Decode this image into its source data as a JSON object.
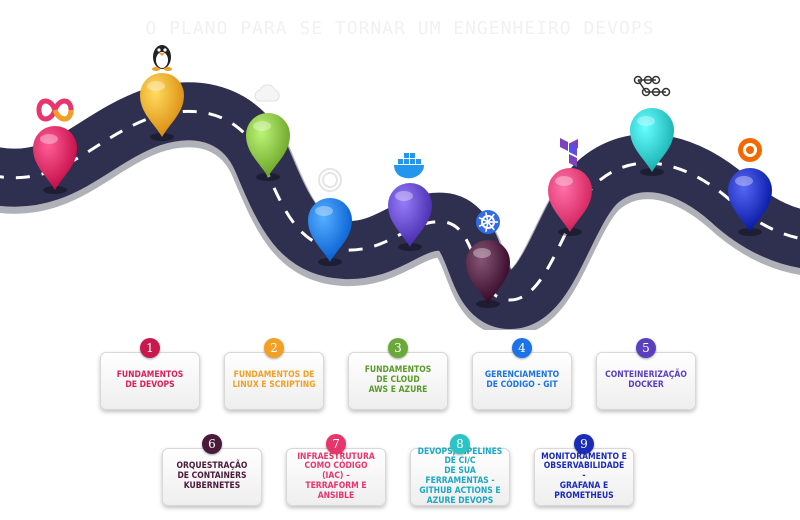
{
  "title": "O plano para se tornar um engenheiro DevOps",
  "colors": {
    "road": "#2f2f4f",
    "road_marking": "#ffffff",
    "background": "#ffffff"
  },
  "milestones": [
    {
      "icon": "infinity-icon",
      "color": "#d8205a"
    },
    {
      "icon": "linux-tux-icon",
      "color": "#f2a024"
    },
    {
      "icon": "cloud-icon",
      "color": "#7fb83a"
    },
    {
      "icon": "github-octocat-icon",
      "color": "#1a73e8"
    },
    {
      "icon": "docker-whale-icon",
      "color": "#5a3fbf"
    },
    {
      "icon": "kubernetes-helm-icon",
      "color": "#4a1a3a"
    },
    {
      "icon": "terraform-icon",
      "color": "#e8356e"
    },
    {
      "icon": "pipeline-flow-icon",
      "color": "#2bc4c4"
    },
    {
      "icon": "grafana-icon",
      "color": "#1a2bb8"
    }
  ],
  "steps": [
    {
      "number": "1",
      "label": "Fundamentos\nde DevOps",
      "color": "#d8205a",
      "badge": "#c8194e"
    },
    {
      "number": "2",
      "label": "Fundamentos de\nLinux e Scripting",
      "color": "#f2a024",
      "badge": "#f2a024"
    },
    {
      "number": "3",
      "label": "Fundamentos\nde Cloud\nAWS e Azure",
      "color": "#5a9a2a",
      "badge": "#6aa83a"
    },
    {
      "number": "4",
      "label": "Gerenciamento\nde Código - Git",
      "color": "#1a73e8",
      "badge": "#1a73e8"
    },
    {
      "number": "5",
      "label": "Conteinerização\nDocker",
      "color": "#5a3fbf",
      "badge": "#5a3fbf"
    },
    {
      "number": "6",
      "label": "Orquestração\nde Containers\nKubernetes",
      "color": "#4a1a3a",
      "badge": "#4a1a3a"
    },
    {
      "number": "7",
      "label": "Infraestrutura\ncomo Código (IaC) –\nTerraform e Ansible",
      "color": "#e8356e",
      "badge": "#e8356e"
    },
    {
      "number": "8",
      "label": "DevOps, Pipelines de CI/C\nde sua ferramentas -\nGitHub Actions e\nAzure DevOps",
      "color": "#1aa8c4",
      "badge": "#2bc4c4"
    },
    {
      "number": "9",
      "label": "Monitoramento e\nObservabilidade  -\nGrafana e Prometheus",
      "color": "#1a2bb8",
      "badge": "#1a2bb8"
    }
  ]
}
